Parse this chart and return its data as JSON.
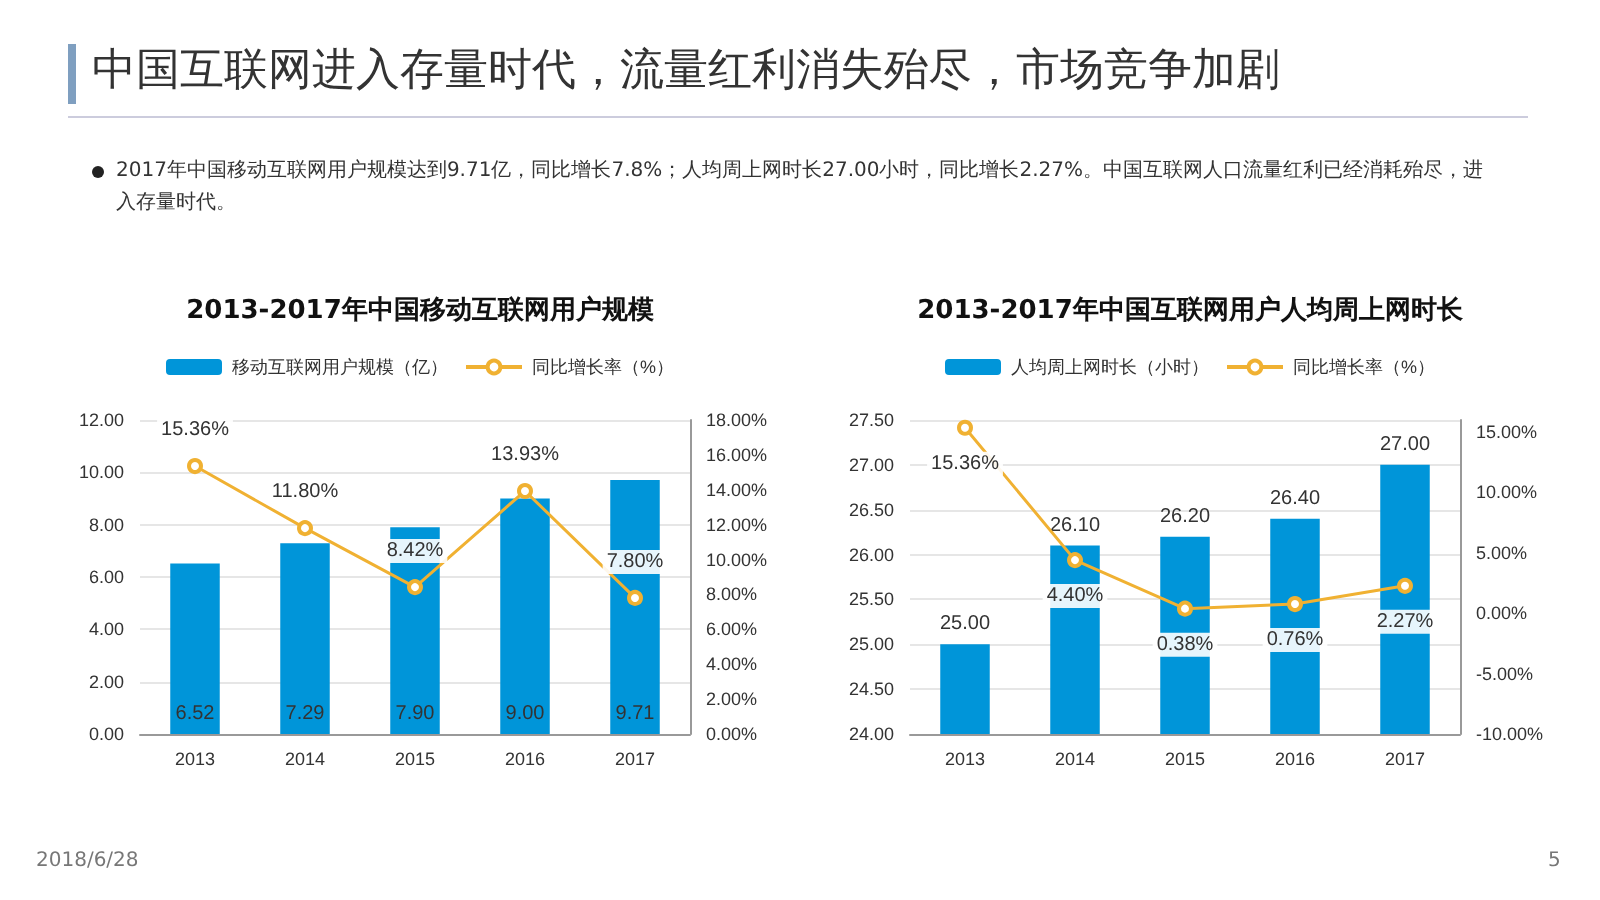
{
  "chart_data": [
    {
      "type": "bar",
      "title": "2013-2017年中国移动互联网用户规模",
      "categories": [
        "2013",
        "2014",
        "2015",
        "2016",
        "2017"
      ],
      "series": [
        {
          "name": "移动互联网用户规模（亿）",
          "color": "#0095d9",
          "values": [
            6.52,
            7.29,
            7.9,
            9.0,
            9.71
          ],
          "value_labels": [
            "6.52",
            "7.29",
            "7.90",
            "9.00",
            "9.71"
          ]
        },
        {
          "name": "同比增长率（%）",
          "type": "line",
          "axis": "y2",
          "color": "#f0b132",
          "values": [
            15.36,
            11.8,
            8.42,
            13.93,
            7.8
          ],
          "value_labels": [
            "15.36%",
            "11.80%",
            "8.42%",
            "13.93%",
            "7.80%"
          ]
        }
      ],
      "ylim": [
        0,
        12
      ],
      "yticks": [
        {
          "value": 0,
          "label": "0.00"
        },
        {
          "value": 2,
          "label": "2.00"
        },
        {
          "value": 4,
          "label": "4.00"
        },
        {
          "value": 6,
          "label": "6.00"
        },
        {
          "value": 8,
          "label": "8.00"
        },
        {
          "value": 10,
          "label": "10.00"
        },
        {
          "value": 12,
          "label": "12.00"
        }
      ],
      "y2lim": [
        0,
        18
      ],
      "y2ticks": [
        {
          "value": 0,
          "label": "0.00%"
        },
        {
          "value": 2,
          "label": "2.00%"
        },
        {
          "value": 4,
          "label": "4.00%"
        },
        {
          "value": 6,
          "label": "6.00%"
        },
        {
          "value": 8,
          "label": "8.00%"
        },
        {
          "value": 10,
          "label": "10.00%"
        },
        {
          "value": 12,
          "label": "12.00%"
        },
        {
          "value": 14,
          "label": "14.00%"
        },
        {
          "value": 16,
          "label": "16.00%"
        },
        {
          "value": 18,
          "label": "18.00%"
        }
      ],
      "grid": "y",
      "legend": "top",
      "marker": "circle",
      "annotations": [
        "中国互联网进入存量时代，流量红利消失殆尽，市场竞争加剧",
        "2017年中国移动互联网用户规模达到9.71亿，同比增长7.8%；人均周上网时长27.00小时，同比增长2.27%。中国互联网人口流量红利已经消耗殆尽，进入存量时代。",
        "2018/6/28",
        "5"
      ]
    },
    {
      "type": "bar",
      "title": "2013-2017年中国互联网用户人均周上网时长",
      "categories": [
        "2013",
        "2014",
        "2015",
        "2016",
        "2017"
      ],
      "series": [
        {
          "name": "人均周上网时长（小时）",
          "color": "#0095d9",
          "values": [
            25.0,
            26.1,
            26.2,
            26.4,
            27.0
          ],
          "value_labels": [
            "25.00",
            "26.10",
            "26.20",
            "26.40",
            "27.00"
          ]
        },
        {
          "name": "同比增长率（%）",
          "type": "line",
          "axis": "y2",
          "color": "#f0b132",
          "values": [
            15.36,
            4.4,
            0.38,
            0.76,
            2.27
          ],
          "value_labels": [
            "15.36%",
            "4.40%",
            "0.38%",
            "0.76%",
            "2.27%"
          ]
        }
      ],
      "ylim": [
        24,
        27.5
      ],
      "yticks": [
        {
          "value": 24,
          "label": "24.00"
        },
        {
          "value": 24.5,
          "label": "24.50"
        },
        {
          "value": 25,
          "label": "25.00"
        },
        {
          "value": 25.5,
          "label": "25.50"
        },
        {
          "value": 26,
          "label": "26.00"
        },
        {
          "value": 26.5,
          "label": "26.50"
        },
        {
          "value": 27,
          "label": "27.00"
        },
        {
          "value": 27.5,
          "label": "27.50"
        }
      ],
      "y2lim": [
        -10,
        16
      ],
      "y2ticks": [
        {
          "value": -10,
          "label": "-10.00%"
        },
        {
          "value": -5,
          "label": "-5.00%"
        },
        {
          "value": 0,
          "label": "0.00%"
        },
        {
          "value": 5,
          "label": "5.00%"
        },
        {
          "value": 10,
          "label": "10.00%"
        },
        {
          "value": 15,
          "label": "15.00%"
        }
      ],
      "grid": "y",
      "legend": "top",
      "marker": "circle"
    }
  ]
}
